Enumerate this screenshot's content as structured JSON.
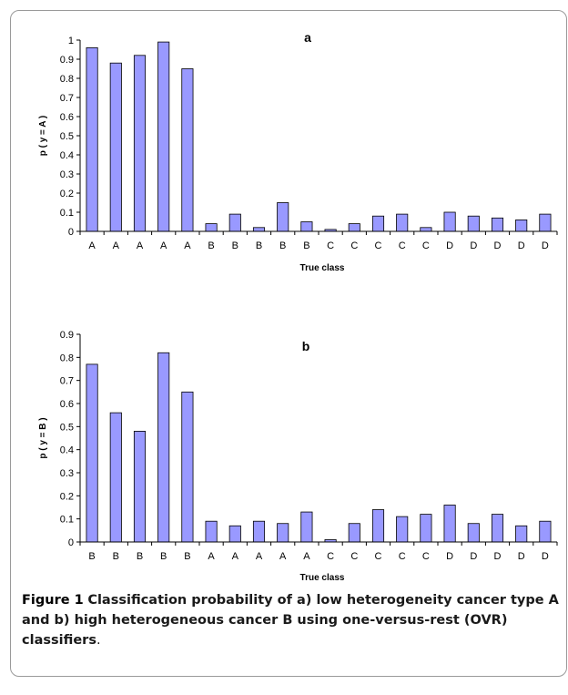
{
  "chart_data": [
    {
      "type": "bar",
      "panel_label": "a",
      "categories": [
        "A",
        "A",
        "A",
        "A",
        "A",
        "B",
        "B",
        "B",
        "B",
        "B",
        "C",
        "C",
        "C",
        "C",
        "C",
        "D",
        "D",
        "D",
        "D",
        "D"
      ],
      "values": [
        0.96,
        0.88,
        0.92,
        0.99,
        0.85,
        0.04,
        0.09,
        0.02,
        0.15,
        0.05,
        0.01,
        0.04,
        0.08,
        0.09,
        0.02,
        0.1,
        0.08,
        0.07,
        0.06,
        0.09
      ],
      "xlabel": "True class",
      "ylabel": "p ( y = A )",
      "ylim": [
        0,
        1
      ],
      "yticks": [
        "0",
        "0.1",
        "0.2",
        "0.3",
        "0.4",
        "0.5",
        "0.6",
        "0.7",
        "0.8",
        "0.9",
        "1"
      ],
      "bar_color": "#9999ff",
      "grid": false
    },
    {
      "type": "bar",
      "panel_label": "b",
      "categories": [
        "B",
        "B",
        "B",
        "B",
        "B",
        "A",
        "A",
        "A",
        "A",
        "A",
        "C",
        "C",
        "C",
        "C",
        "C",
        "D",
        "D",
        "D",
        "D",
        "D"
      ],
      "values": [
        0.77,
        0.56,
        0.48,
        0.82,
        0.65,
        0.09,
        0.07,
        0.09,
        0.08,
        0.13,
        0.01,
        0.08,
        0.14,
        0.11,
        0.12,
        0.16,
        0.08,
        0.12,
        0.07,
        0.09
      ],
      "xlabel": "True class",
      "ylabel": "p ( y = B )",
      "ylim": [
        0,
        0.9
      ],
      "yticks": [
        "0",
        "0.1",
        "0.2",
        "0.3",
        "0.4",
        "0.5",
        "0.6",
        "0.7",
        "0.8",
        "0.9"
      ],
      "bar_color": "#9999ff",
      "grid": false
    }
  ],
  "caption": {
    "label": "Figure 1",
    "text": "Classification probability of a) low heterogeneity cancer type A and b) high heterogeneous cancer B using one-versus-rest (OVR) classifiers",
    "end": "."
  }
}
